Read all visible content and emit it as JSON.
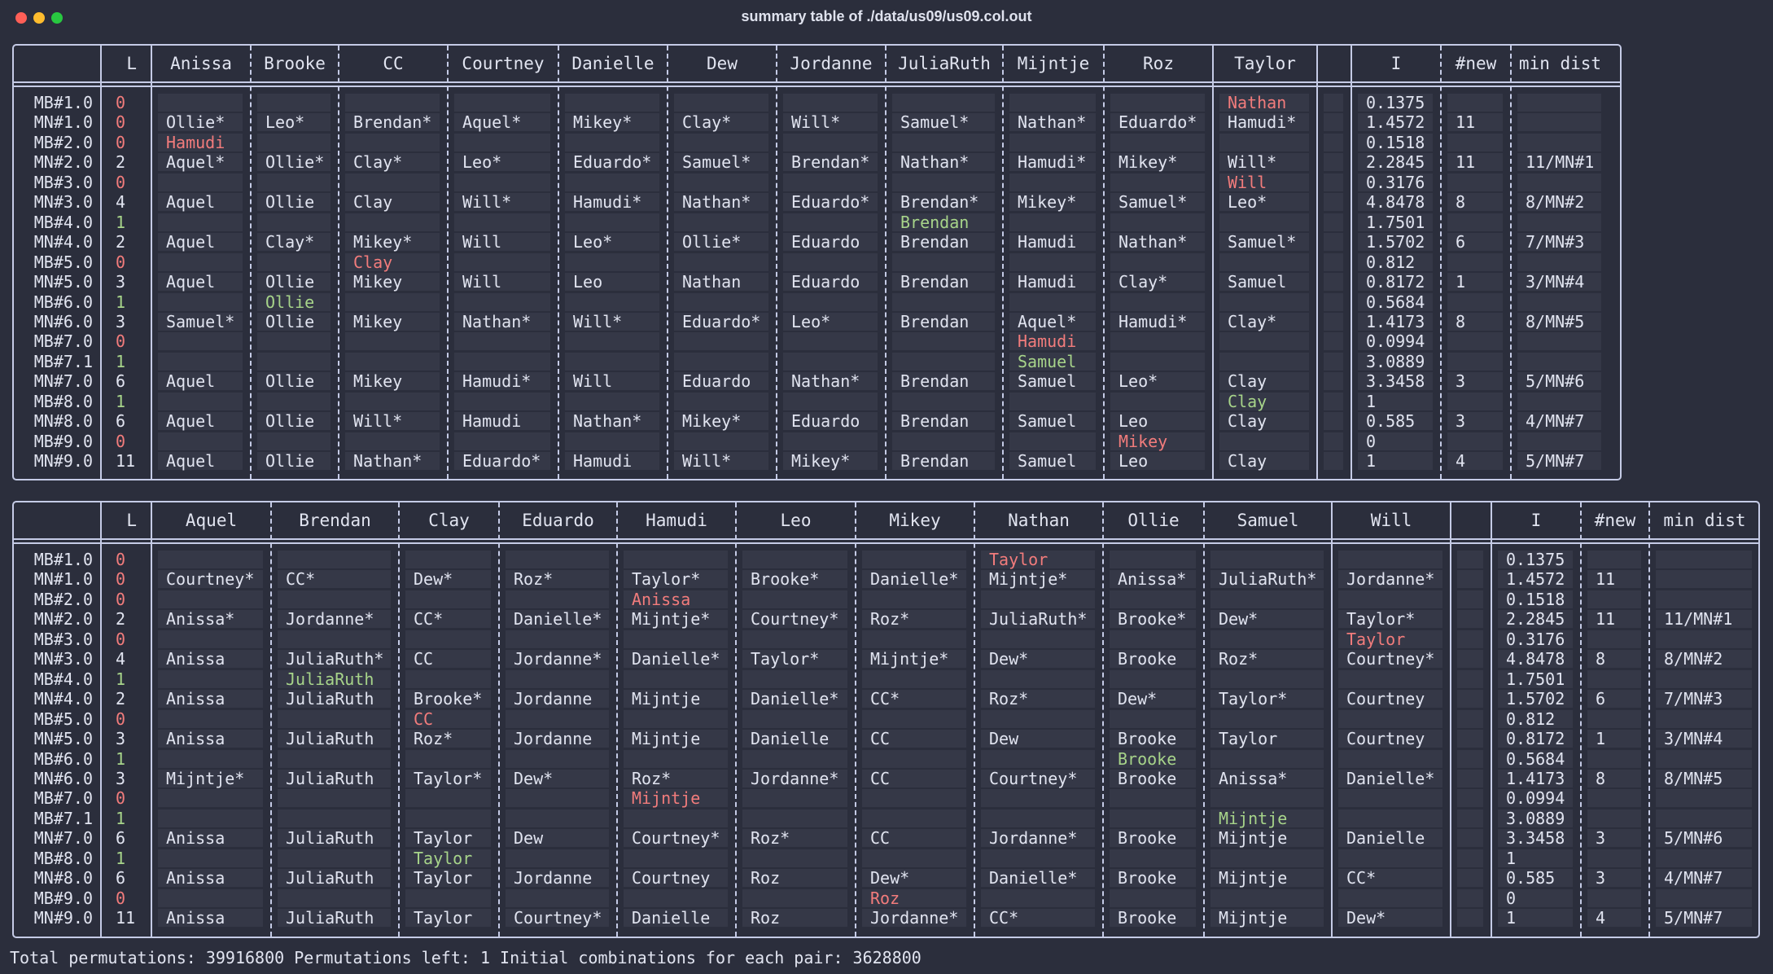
{
  "window": {
    "title": "summary table of ./data/us09/us09.col.out"
  },
  "status_line": "Total permutations: 39916800  Permutations left: 1  Initial combinations for each pair: 3628800",
  "colors": {
    "text": "#e1e4f0",
    "zero_count": "#f27c7c",
    "one_count": "#a7d48a",
    "border": "#c5cbe6",
    "background": "#2b2e3c"
  },
  "tables": [
    {
      "headers": [
        "",
        "L",
        "Anissa",
        "Brooke",
        "CC",
        "Courtney",
        "Danielle",
        "Dew",
        "Jordanne",
        "JuliaRuth",
        "Mijntje",
        "Roz",
        "Taylor",
        "",
        "I",
        "#new",
        "min dist"
      ],
      "rows": [
        [
          "MB#1.0",
          "0",
          "",
          "",
          "",
          "",
          "",
          "",
          "",
          "",
          "",
          "",
          "Nathan",
          "",
          "0.1375",
          "",
          ""
        ],
        [
          "MN#1.0",
          "0",
          "Ollie*",
          "Leo*",
          "Brendan*",
          "Aquel*",
          "Mikey*",
          "Clay*",
          "Will*",
          "Samuel*",
          "Nathan*",
          "Eduardo*",
          "Hamudi*",
          "",
          "1.4572",
          "11",
          ""
        ],
        [
          "MB#2.0",
          "0",
          "Hamudi",
          "",
          "",
          "",
          "",
          "",
          "",
          "",
          "",
          "",
          "",
          "",
          "0.1518",
          "",
          ""
        ],
        [
          "MN#2.0",
          "2",
          "Aquel*",
          "Ollie*",
          "Clay*",
          "Leo*",
          "Eduardo*",
          "Samuel*",
          "Brendan*",
          "Nathan*",
          "Hamudi*",
          "Mikey*",
          "Will*",
          "",
          "2.2845",
          "11",
          "11/MN#1"
        ],
        [
          "MB#3.0",
          "0",
          "",
          "",
          "",
          "",
          "",
          "",
          "",
          "",
          "",
          "",
          "Will",
          "",
          "0.3176",
          "",
          ""
        ],
        [
          "MN#3.0",
          "4",
          "Aquel",
          "Ollie",
          "Clay",
          "Will*",
          "Hamudi*",
          "Nathan*",
          "Eduardo*",
          "Brendan*",
          "Mikey*",
          "Samuel*",
          "Leo*",
          "",
          "4.8478",
          "8",
          "8/MN#2"
        ],
        [
          "MB#4.0",
          "1",
          "",
          "",
          "",
          "",
          "",
          "",
          "",
          "Brendan",
          "",
          "",
          "",
          "",
          "1.7501",
          "",
          ""
        ],
        [
          "MN#4.0",
          "2",
          "Aquel",
          "Clay*",
          "Mikey*",
          "Will",
          "Leo*",
          "Ollie*",
          "Eduardo",
          "Brendan",
          "Hamudi",
          "Nathan*",
          "Samuel*",
          "",
          "1.5702",
          "6",
          "7/MN#3"
        ],
        [
          "MB#5.0",
          "0",
          "",
          "",
          "Clay",
          "",
          "",
          "",
          "",
          "",
          "",
          "",
          "",
          "",
          "0.812",
          "",
          ""
        ],
        [
          "MN#5.0",
          "3",
          "Aquel",
          "Ollie",
          "Mikey",
          "Will",
          "Leo",
          "Nathan",
          "Eduardo",
          "Brendan",
          "Hamudi",
          "Clay*",
          "Samuel",
          "",
          "0.8172",
          "1",
          "3/MN#4"
        ],
        [
          "MB#6.0",
          "1",
          "",
          "Ollie",
          "",
          "",
          "",
          "",
          "",
          "",
          "",
          "",
          "",
          "",
          "0.5684",
          "",
          ""
        ],
        [
          "MN#6.0",
          "3",
          "Samuel*",
          "Ollie",
          "Mikey",
          "Nathan*",
          "Will*",
          "Eduardo*",
          "Leo*",
          "Brendan",
          "Aquel*",
          "Hamudi*",
          "Clay*",
          "",
          "1.4173",
          "8",
          "8/MN#5"
        ],
        [
          "MB#7.0",
          "0",
          "",
          "",
          "",
          "",
          "",
          "",
          "",
          "",
          "Hamudi",
          "",
          "",
          "",
          "0.0994",
          "",
          ""
        ],
        [
          "MB#7.1",
          "1",
          "",
          "",
          "",
          "",
          "",
          "",
          "",
          "",
          "Samuel",
          "",
          "",
          "",
          "3.0889",
          "",
          ""
        ],
        [
          "MN#7.0",
          "6",
          "Aquel",
          "Ollie",
          "Mikey",
          "Hamudi*",
          "Will",
          "Eduardo",
          "Nathan*",
          "Brendan",
          "Samuel",
          "Leo*",
          "Clay",
          "",
          "3.3458",
          "3",
          "5/MN#6"
        ],
        [
          "MB#8.0",
          "1",
          "",
          "",
          "",
          "",
          "",
          "",
          "",
          "",
          "",
          "",
          "Clay",
          "",
          "1",
          "",
          ""
        ],
        [
          "MN#8.0",
          "6",
          "Aquel",
          "Ollie",
          "Will*",
          "Hamudi",
          "Nathan*",
          "Mikey*",
          "Eduardo",
          "Brendan",
          "Samuel",
          "Leo",
          "Clay",
          "",
          "0.585",
          "3",
          "4/MN#7"
        ],
        [
          "MB#9.0",
          "0",
          "",
          "",
          "",
          "",
          "",
          "",
          "",
          "",
          "",
          "Mikey",
          "",
          "",
          "0",
          "",
          ""
        ],
        [
          "MN#9.0",
          "11",
          "Aquel",
          "Ollie",
          "Nathan*",
          "Eduardo*",
          "Hamudi",
          "Will*",
          "Mikey*",
          "Brendan",
          "Samuel",
          "Leo",
          "Clay",
          "",
          "1",
          "4",
          "5/MN#7"
        ]
      ]
    },
    {
      "headers": [
        "",
        "L",
        "Aquel",
        "Brendan",
        "Clay",
        "Eduardo",
        "Hamudi",
        "Leo",
        "Mikey",
        "Nathan",
        "Ollie",
        "Samuel",
        "Will",
        "",
        "I",
        "#new",
        "min dist"
      ],
      "rows": [
        [
          "MB#1.0",
          "0",
          "",
          "",
          "",
          "",
          "",
          "",
          "",
          "Taylor",
          "",
          "",
          "",
          "",
          "0.1375",
          "",
          ""
        ],
        [
          "MN#1.0",
          "0",
          "Courtney*",
          "CC*",
          "Dew*",
          "Roz*",
          "Taylor*",
          "Brooke*",
          "Danielle*",
          "Mijntje*",
          "Anissa*",
          "JuliaRuth*",
          "Jordanne*",
          "",
          "1.4572",
          "11",
          ""
        ],
        [
          "MB#2.0",
          "0",
          "",
          "",
          "",
          "",
          "Anissa",
          "",
          "",
          "",
          "",
          "",
          "",
          "",
          "0.1518",
          "",
          ""
        ],
        [
          "MN#2.0",
          "2",
          "Anissa*",
          "Jordanne*",
          "CC*",
          "Danielle*",
          "Mijntje*",
          "Courtney*",
          "Roz*",
          "JuliaRuth*",
          "Brooke*",
          "Dew*",
          "Taylor*",
          "",
          "2.2845",
          "11",
          "11/MN#1"
        ],
        [
          "MB#3.0",
          "0",
          "",
          "",
          "",
          "",
          "",
          "",
          "",
          "",
          "",
          "",
          "Taylor",
          "",
          "0.3176",
          "",
          ""
        ],
        [
          "MN#3.0",
          "4",
          "Anissa",
          "JuliaRuth*",
          "CC",
          "Jordanne*",
          "Danielle*",
          "Taylor*",
          "Mijntje*",
          "Dew*",
          "Brooke",
          "Roz*",
          "Courtney*",
          "",
          "4.8478",
          "8",
          "8/MN#2"
        ],
        [
          "MB#4.0",
          "1",
          "",
          "JuliaRuth",
          "",
          "",
          "",
          "",
          "",
          "",
          "",
          "",
          "",
          "",
          "1.7501",
          "",
          ""
        ],
        [
          "MN#4.0",
          "2",
          "Anissa",
          "JuliaRuth",
          "Brooke*",
          "Jordanne",
          "Mijntje",
          "Danielle*",
          "CC*",
          "Roz*",
          "Dew*",
          "Taylor*",
          "Courtney",
          "",
          "1.5702",
          "6",
          "7/MN#3"
        ],
        [
          "MB#5.0",
          "0",
          "",
          "",
          "CC",
          "",
          "",
          "",
          "",
          "",
          "",
          "",
          "",
          "",
          "0.812",
          "",
          ""
        ],
        [
          "MN#5.0",
          "3",
          "Anissa",
          "JuliaRuth",
          "Roz*",
          "Jordanne",
          "Mijntje",
          "Danielle",
          "CC",
          "Dew",
          "Brooke",
          "Taylor",
          "Courtney",
          "",
          "0.8172",
          "1",
          "3/MN#4"
        ],
        [
          "MB#6.0",
          "1",
          "",
          "",
          "",
          "",
          "",
          "",
          "",
          "",
          "Brooke",
          "",
          "",
          "",
          "0.5684",
          "",
          ""
        ],
        [
          "MN#6.0",
          "3",
          "Mijntje*",
          "JuliaRuth",
          "Taylor*",
          "Dew*",
          "Roz*",
          "Jordanne*",
          "CC",
          "Courtney*",
          "Brooke",
          "Anissa*",
          "Danielle*",
          "",
          "1.4173",
          "8",
          "8/MN#5"
        ],
        [
          "MB#7.0",
          "0",
          "",
          "",
          "",
          "",
          "Mijntje",
          "",
          "",
          "",
          "",
          "",
          "",
          "",
          "0.0994",
          "",
          ""
        ],
        [
          "MB#7.1",
          "1",
          "",
          "",
          "",
          "",
          "",
          "",
          "",
          "",
          "",
          "Mijntje",
          "",
          "",
          "3.0889",
          "",
          ""
        ],
        [
          "MN#7.0",
          "6",
          "Anissa",
          "JuliaRuth",
          "Taylor",
          "Dew",
          "Courtney*",
          "Roz*",
          "CC",
          "Jordanne*",
          "Brooke",
          "Mijntje",
          "Danielle",
          "",
          "3.3458",
          "3",
          "5/MN#6"
        ],
        [
          "MB#8.0",
          "1",
          "",
          "",
          "Taylor",
          "",
          "",
          "",
          "",
          "",
          "",
          "",
          "",
          "",
          "1",
          "",
          ""
        ],
        [
          "MN#8.0",
          "6",
          "Anissa",
          "JuliaRuth",
          "Taylor",
          "Jordanne",
          "Courtney",
          "Roz",
          "Dew*",
          "Danielle*",
          "Brooke",
          "Mijntje",
          "CC*",
          "",
          "0.585",
          "3",
          "4/MN#7"
        ],
        [
          "MB#9.0",
          "0",
          "",
          "",
          "",
          "",
          "",
          "",
          "Roz",
          "",
          "",
          "",
          "",
          "",
          "0",
          "",
          ""
        ],
        [
          "MN#9.0",
          "11",
          "Anissa",
          "JuliaRuth",
          "Taylor",
          "Courtney*",
          "Danielle",
          "Roz",
          "Jordanne*",
          "CC*",
          "Brooke",
          "Mijntje",
          "Dew*",
          "",
          "1",
          "4",
          "5/MN#7"
        ]
      ]
    }
  ]
}
